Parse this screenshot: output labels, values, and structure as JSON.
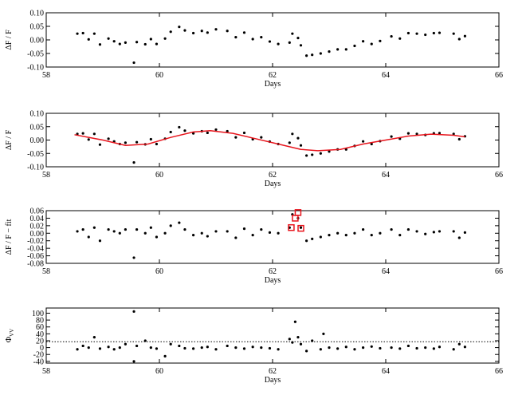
{
  "chart_data": [
    {
      "type": "scatter",
      "ylabel": "ΔF / F",
      "xlabel": "Days",
      "xlim": [
        58,
        66
      ],
      "xticks": [
        58,
        60,
        62,
        64,
        66
      ],
      "ylim": [
        -0.1,
        0.1
      ],
      "yticks": [
        {
          "value": -0.1,
          "label": "-0.10"
        },
        {
          "value": -0.05,
          "label": "-0.05"
        },
        {
          "value": 0,
          "label": "0.00"
        },
        {
          "value": 0.05,
          "label": "0.05"
        },
        {
          "value": 0.1,
          "label": "0.10"
        }
      ],
      "x": [
        58.55,
        58.65,
        58.75,
        58.85,
        58.95,
        59.1,
        59.2,
        59.3,
        59.4,
        59.55,
        59.6,
        59.75,
        59.85,
        59.95,
        60.1,
        60.2,
        60.35,
        60.45,
        60.6,
        60.75,
        60.85,
        61.0,
        61.2,
        61.35,
        61.5,
        61.65,
        61.8,
        61.95,
        62.1,
        62.3,
        62.35,
        62.45,
        62.5,
        62.6,
        62.7,
        62.85,
        63.0,
        63.15,
        63.3,
        63.45,
        63.6,
        63.75,
        63.9,
        64.1,
        64.25,
        64.4,
        64.55,
        64.7,
        64.85,
        64.95,
        65.2,
        65.3,
        65.4
      ],
      "series": [
        {
          "color": "#000000",
          "values": [
            0.023,
            0.025,
            0.002,
            0.023,
            -0.017,
            0.005,
            -0.005,
            -0.015,
            -0.01,
            -0.084,
            -0.008,
            -0.016,
            0.003,
            -0.015,
            0.005,
            0.03,
            0.048,
            0.035,
            0.025,
            0.033,
            0.027,
            0.039,
            0.033,
            0.01,
            0.027,
            0.003,
            0.01,
            -0.006,
            -0.015,
            -0.01,
            0.023,
            0.007,
            -0.02,
            -0.058,
            -0.055,
            -0.05,
            -0.043,
            -0.035,
            -0.035,
            -0.022,
            -0.005,
            -0.015,
            -0.004,
            0.013,
            0.005,
            0.025,
            0.023,
            0.019,
            0.025,
            0.026,
            0.023,
            0.003,
            0.014
          ]
        }
      ]
    },
    {
      "type": "scatter",
      "ylabel": "ΔF / F",
      "xlabel": "Days",
      "xlim": [
        58,
        66
      ],
      "xticks": [
        58,
        60,
        62,
        64,
        66
      ],
      "ylim": [
        -0.1,
        0.1
      ],
      "yticks": [
        {
          "value": -0.1,
          "label": "-0.10"
        },
        {
          "value": -0.05,
          "label": "-0.05"
        },
        {
          "value": 0,
          "label": "0.00"
        },
        {
          "value": 0.05,
          "label": "0.05"
        },
        {
          "value": 0.1,
          "label": "0.10"
        }
      ],
      "x": [
        58.55,
        58.65,
        58.75,
        58.85,
        58.95,
        59.1,
        59.2,
        59.3,
        59.4,
        59.55,
        59.6,
        59.75,
        59.85,
        59.95,
        60.1,
        60.2,
        60.35,
        60.45,
        60.6,
        60.75,
        60.85,
        61.0,
        61.2,
        61.35,
        61.5,
        61.65,
        61.8,
        61.95,
        62.1,
        62.3,
        62.35,
        62.45,
        62.5,
        62.6,
        62.7,
        62.85,
        63.0,
        63.15,
        63.3,
        63.45,
        63.6,
        63.75,
        63.9,
        64.1,
        64.25,
        64.4,
        64.55,
        64.7,
        64.85,
        64.95,
        65.2,
        65.3,
        65.4
      ],
      "series": [
        {
          "color": "#000000",
          "values": [
            0.023,
            0.025,
            0.002,
            0.023,
            -0.017,
            0.005,
            -0.005,
            -0.015,
            -0.01,
            -0.084,
            -0.008,
            -0.016,
            0.003,
            -0.015,
            0.005,
            0.03,
            0.048,
            0.035,
            0.025,
            0.033,
            0.027,
            0.039,
            0.033,
            0.01,
            0.027,
            0.003,
            0.01,
            -0.006,
            -0.015,
            -0.01,
            0.023,
            0.007,
            -0.02,
            -0.058,
            -0.055,
            -0.05,
            -0.043,
            -0.035,
            -0.035,
            -0.022,
            -0.005,
            -0.015,
            -0.004,
            0.013,
            0.005,
            0.025,
            0.023,
            0.019,
            0.025,
            0.026,
            0.023,
            0.003,
            0.014
          ]
        },
        {
          "color": "#e8141c",
          "style": "line",
          "x": [
            58.5,
            59.0,
            59.4,
            59.8,
            60.2,
            60.6,
            60.9,
            61.3,
            61.7,
            62.1,
            62.5,
            62.8,
            63.2,
            63.6,
            64.0,
            64.4,
            64.8,
            65.2,
            65.4
          ],
          "values": [
            0.02,
            0.0,
            -0.02,
            -0.015,
            0.01,
            0.03,
            0.035,
            0.025,
            0.005,
            -0.015,
            -0.035,
            -0.04,
            -0.035,
            -0.015,
            0.0,
            0.015,
            0.022,
            0.018,
            0.012
          ]
        }
      ]
    },
    {
      "type": "scatter",
      "ylabel": "ΔF / F − fit",
      "xlabel": "Days",
      "xlim": [
        58,
        66
      ],
      "xticks": [
        58,
        60,
        62,
        64,
        66
      ],
      "ylim": [
        -0.08,
        0.06
      ],
      "yticks": [
        {
          "value": -0.08,
          "label": "-0.08"
        },
        {
          "value": -0.06,
          "label": "-0.06"
        },
        {
          "value": -0.04,
          "label": "-0.04"
        },
        {
          "value": -0.02,
          "label": "-0.02"
        },
        {
          "value": 0,
          "label": "0.00"
        },
        {
          "value": 0.02,
          "label": "0.02"
        },
        {
          "value": 0.04,
          "label": "0.04"
        },
        {
          "value": 0.06,
          "label": "0.06"
        }
      ],
      "x": [
        58.55,
        58.65,
        58.75,
        58.85,
        58.95,
        59.1,
        59.2,
        59.3,
        59.4,
        59.55,
        59.6,
        59.75,
        59.85,
        59.95,
        60.1,
        60.2,
        60.35,
        60.45,
        60.6,
        60.75,
        60.85,
        61.0,
        61.2,
        61.35,
        61.5,
        61.65,
        61.8,
        61.95,
        62.1,
        62.3,
        62.35,
        62.45,
        62.5,
        62.6,
        62.7,
        62.85,
        63.0,
        63.15,
        63.3,
        63.45,
        63.6,
        63.75,
        63.9,
        64.1,
        64.25,
        64.4,
        64.55,
        64.7,
        64.85,
        64.95,
        65.2,
        65.3,
        65.4
      ],
      "series": [
        {
          "color": "#000000",
          "values": [
            0.005,
            0.01,
            -0.01,
            0.015,
            -0.02,
            0.01,
            0.005,
            0.0,
            0.01,
            -0.065,
            0.01,
            0.0,
            0.015,
            -0.01,
            0.0,
            0.02,
            0.028,
            0.01,
            -0.005,
            0.0,
            -0.008,
            0.005,
            0.005,
            -0.012,
            0.012,
            -0.005,
            0.01,
            0.002,
            0.0,
            0.015,
            0.05,
            0.04,
            0.015,
            -0.02,
            -0.015,
            -0.01,
            -0.005,
            0.0,
            -0.005,
            0.0,
            0.01,
            -0.005,
            0.0,
            0.01,
            -0.005,
            0.01,
            0.005,
            -0.002,
            0.003,
            0.005,
            0.005,
            -0.012,
            0.002
          ]
        },
        {
          "color": "#e8141c",
          "style": "square",
          "x": [
            62.33,
            62.4,
            62.45,
            62.5
          ],
          "values": [
            0.015,
            0.04,
            0.055,
            0.013
          ]
        }
      ]
    },
    {
      "type": "scatter",
      "ylabel": "Φ",
      "ylabel_sub": "VV",
      "xlabel": "Days",
      "xlim": [
        58,
        66
      ],
      "xticks": [
        58,
        60,
        62,
        64,
        66
      ],
      "ylim": [
        -45,
        115
      ],
      "yticks": [
        -40,
        -20,
        0,
        20,
        40,
        60,
        80,
        100
      ],
      "hline": 17,
      "x": [
        58.55,
        58.65,
        58.75,
        58.85,
        58.95,
        59.1,
        59.2,
        59.3,
        59.4,
        59.55,
        59.55,
        59.6,
        59.75,
        59.85,
        59.95,
        60.1,
        60.2,
        60.35,
        60.45,
        60.6,
        60.75,
        60.85,
        61.0,
        61.2,
        61.35,
        61.5,
        61.65,
        61.8,
        61.95,
        62.1,
        62.3,
        62.35,
        62.4,
        62.45,
        62.5,
        62.6,
        62.7,
        62.85,
        62.9,
        63.0,
        63.15,
        63.3,
        63.45,
        63.6,
        63.75,
        63.9,
        64.1,
        64.25,
        64.4,
        64.55,
        64.7,
        64.85,
        64.95,
        65.2,
        65.3,
        65.4
      ],
      "series": [
        {
          "color": "#000000",
          "values": [
            -5,
            5,
            0,
            30,
            -3,
            2,
            -5,
            0,
            10,
            105,
            -40,
            5,
            20,
            0,
            -3,
            -25,
            10,
            5,
            -2,
            -3,
            0,
            2,
            -5,
            5,
            0,
            -3,
            2,
            0,
            -2,
            -5,
            25,
            15,
            75,
            30,
            10,
            -10,
            20,
            -5,
            40,
            0,
            -3,
            2,
            -5,
            0,
            3,
            -2,
            0,
            -3,
            5,
            -2,
            0,
            -3,
            2,
            -5,
            10,
            2
          ]
        }
      ]
    }
  ]
}
